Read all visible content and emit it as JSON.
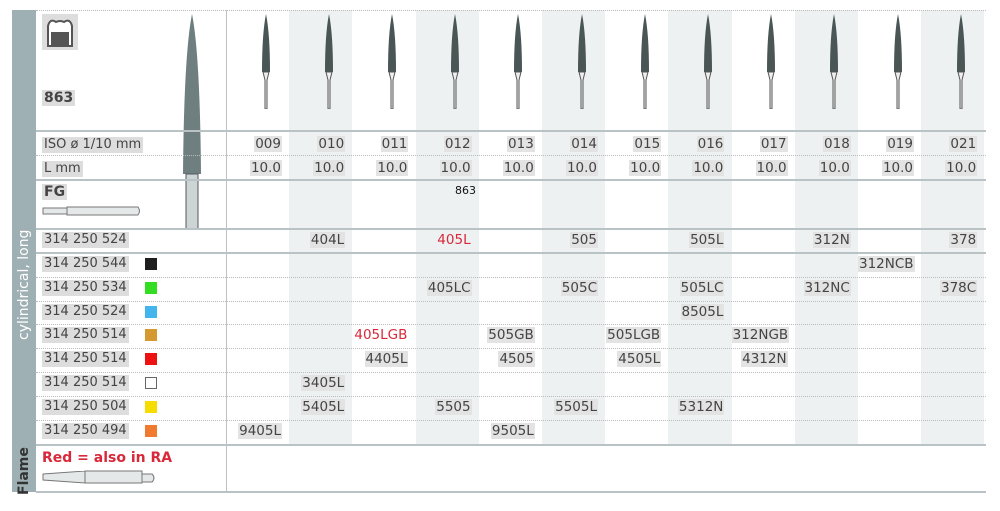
{
  "shape_no": "863",
  "shank": "FG",
  "side_labels": {
    "type": "cylindrical, long",
    "shape": "Flame"
  },
  "iso_label": "ISO ø 1/10 mm",
  "length_label": "L mm",
  "sizes": [
    "009",
    "010",
    "011",
    "012",
    "013",
    "014",
    "015",
    "016",
    "017",
    "018",
    "019",
    "021"
  ],
  "lengths": [
    "10.0",
    "10.0",
    "10.0",
    "10.0",
    "10.0",
    "10.0",
    "10.0",
    "10.0",
    "10.0",
    "10.0",
    "10.0",
    "10.0"
  ],
  "overlay_text": "863",
  "note": "Red = also in RA",
  "rows": [
    {
      "ref": "314 250 524",
      "color": "",
      "cells": {
        "1": "404L",
        "3": "405L",
        "5": "505",
        "7": "505L",
        "9": "312N",
        "11": "378"
      },
      "red": [
        "3"
      ]
    },
    {
      "ref": "314 250 544",
      "color": "#1e1e1e",
      "cells": {
        "10": "312NCB"
      },
      "red": []
    },
    {
      "ref": "314 250 534",
      "color": "#33dd22",
      "cells": {
        "3": "405LC",
        "5": "505C",
        "7": "505LC",
        "9": "312NC",
        "11": "378C"
      },
      "red": []
    },
    {
      "ref": "314 250 524",
      "color": "#44b4ee",
      "cells": {
        "7": "8505L"
      },
      "red": []
    },
    {
      "ref": "314 250 514",
      "color": "#d49a30",
      "cells": {
        "2": "405LGB",
        "4": "505GB",
        "6": "505LGB",
        "8": "312NGB"
      },
      "red": [
        "2"
      ]
    },
    {
      "ref": "314 250 514",
      "color": "#ee1111",
      "cells": {
        "2": "4405L",
        "4": "4505",
        "6": "4505L",
        "8": "4312N"
      },
      "red": []
    },
    {
      "ref": "314 250 514",
      "color": "#ffffff",
      "cells": {
        "1": "3405L"
      },
      "red": []
    },
    {
      "ref": "314 250 504",
      "color": "#f5dd00",
      "cells": {
        "1": "5405L",
        "3": "5505",
        "5": "5505L",
        "7": "5312N"
      },
      "red": []
    },
    {
      "ref": "314 250 494",
      "color": "#f07a30",
      "cells": {
        "0": "9405L",
        "4": "9505L"
      },
      "red": []
    }
  ]
}
